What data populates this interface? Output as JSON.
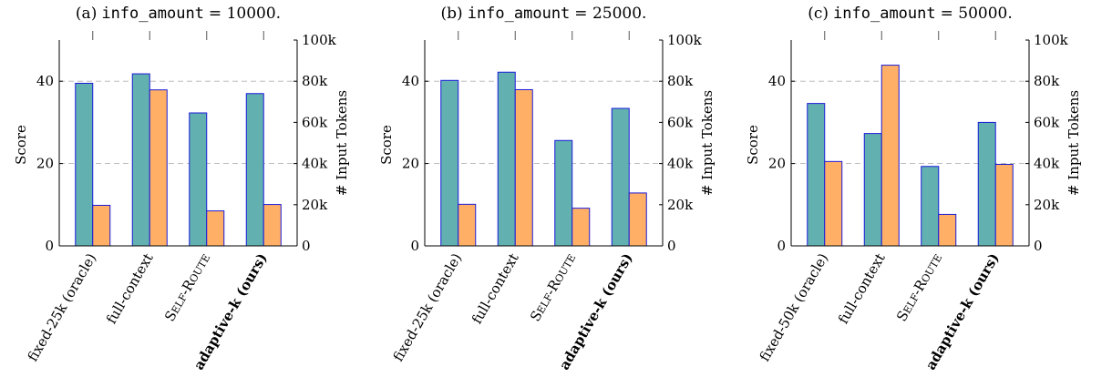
{
  "colors": {
    "score_fill": "#62b0b0",
    "tokens_fill": "#ffb066",
    "bar_stroke": "#1a1ad9",
    "grid": "#b5b5b5",
    "axis": "#000000"
  },
  "chart_data": [
    {
      "type": "bar",
      "title_prefix": "(a)",
      "title_code": "info_amount",
      "title_value": "= 10000.",
      "categories": [
        "fixed-25k (oracle)",
        "full-context",
        "Self-Route",
        "adaptive-k (ours)"
      ],
      "category_bold": [
        false,
        false,
        false,
        true
      ],
      "series": [
        {
          "name": "Score",
          "axis": "left",
          "values": [
            39.5,
            41.8,
            32.3,
            37.0
          ]
        },
        {
          "name": "# Input Tokens",
          "axis": "right",
          "values": [
            19700,
            75800,
            17000,
            20100
          ]
        }
      ],
      "ylabel": "Score",
      "ylabel_right": "# Input Tokens",
      "ylim": [
        0,
        50
      ],
      "ylim_right": [
        0,
        100000
      ],
      "yticks": [
        "0",
        "20",
        "40"
      ],
      "yticks_right": [
        "0",
        "20k",
        "40k",
        "60k",
        "80k",
        "100k"
      ],
      "grid": true
    },
    {
      "type": "bar",
      "title_prefix": "(b)",
      "title_code": "info_amount",
      "title_value": "= 25000.",
      "categories": [
        "fixed-25k (oracle)",
        "full-context",
        "Self-Route",
        "adaptive-k (ours)"
      ],
      "category_bold": [
        false,
        false,
        false,
        true
      ],
      "series": [
        {
          "name": "Score",
          "axis": "left",
          "values": [
            40.2,
            42.2,
            25.6,
            33.4
          ]
        },
        {
          "name": "# Input Tokens",
          "axis": "right",
          "values": [
            20200,
            75900,
            18300,
            25700
          ]
        }
      ],
      "ylabel": "Score",
      "ylabel_right": "# Input Tokens",
      "ylim": [
        0,
        50
      ],
      "ylim_right": [
        0,
        100000
      ],
      "yticks": [
        "0",
        "20",
        "40"
      ],
      "yticks_right": [
        "0",
        "20k",
        "40k",
        "60k",
        "80k",
        "100k"
      ],
      "grid": true
    },
    {
      "type": "bar",
      "title_prefix": "(c)",
      "title_code": "info_amount",
      "title_value": "= 50000.",
      "categories": [
        "fixed-50k (oracle)",
        "full-context",
        "Self-Route",
        "adaptive-k (ours)"
      ],
      "category_bold": [
        false,
        false,
        false,
        true
      ],
      "series": [
        {
          "name": "Score",
          "axis": "left",
          "values": [
            34.6,
            27.3,
            19.3,
            30.0
          ]
        },
        {
          "name": "# Input Tokens",
          "axis": "right",
          "values": [
            41000,
            87800,
            15300,
            39600
          ]
        }
      ],
      "ylabel": "Score",
      "ylabel_right": "# Input Tokens",
      "ylim": [
        0,
        50
      ],
      "ylim_right": [
        0,
        100000
      ],
      "yticks": [
        "0",
        "20",
        "40"
      ],
      "yticks_right": [
        "0",
        "20k",
        "40k",
        "60k",
        "80k",
        "100k"
      ],
      "grid": true
    }
  ]
}
